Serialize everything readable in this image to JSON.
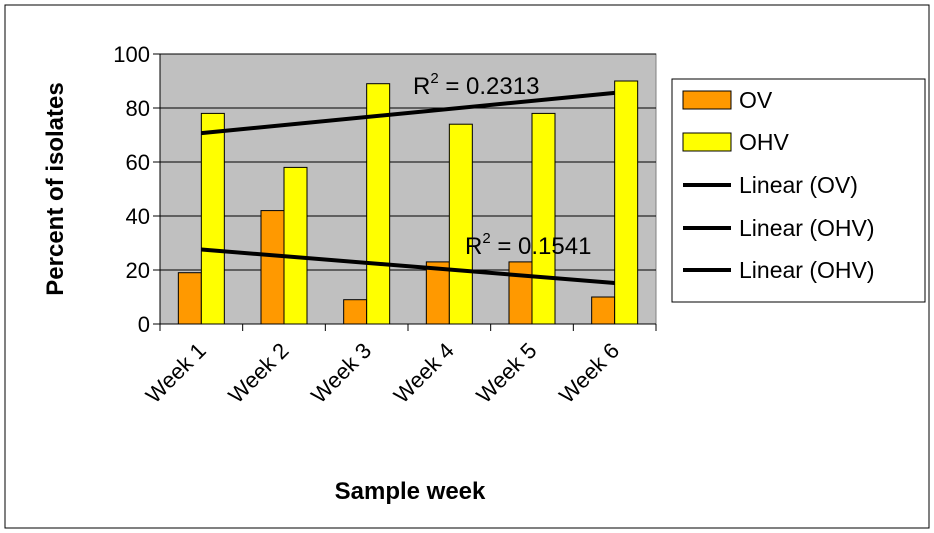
{
  "chart_data": {
    "type": "bar",
    "categories": [
      "Week 1",
      "Week 2",
      "Week 3",
      "Week 4",
      "Week 5",
      "Week 6"
    ],
    "series": [
      {
        "name": "OV",
        "values": [
          19,
          42,
          9,
          23,
          23,
          10
        ],
        "color": "#ff9900"
      },
      {
        "name": "OHV",
        "values": [
          78,
          58,
          89,
          74,
          78,
          90
        ],
        "color": "#ffff00"
      }
    ],
    "trendlines": [
      {
        "name": "Linear (OV)",
        "start": 27.6,
        "end": 15.2,
        "r2_label": "R",
        "r2_exp": "2",
        "r2_value": " = 0.1541"
      },
      {
        "name": "Linear (OHV)",
        "start": 70.7,
        "end": 85.6,
        "r2_label": "R",
        "r2_exp": "2",
        "r2_value": " = 0.2313"
      }
    ],
    "legend": [
      "OV",
      "OHV",
      "Linear (OV)",
      "Linear (OHV)",
      "Linear (OHV)"
    ],
    "xlabel": "Sample week",
    "ylabel": "Percent of isolates",
    "ylim": [
      0,
      100
    ],
    "yticks": [
      0,
      20,
      40,
      60,
      80,
      100
    ],
    "plot_background": "#c0c0c0",
    "grid": true,
    "legend_position": "right"
  }
}
